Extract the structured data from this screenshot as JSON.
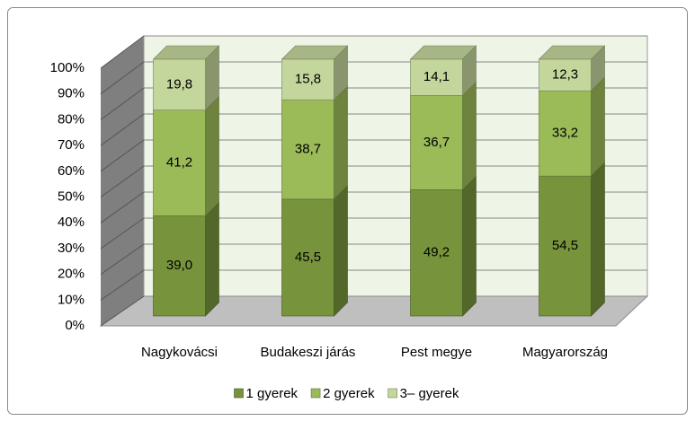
{
  "chart_data": {
    "type": "bar3d_stacked",
    "categories": [
      "Nagykovácsi",
      "Budakeszi járás",
      "Pest megye",
      "Magyarország"
    ],
    "series": [
      {
        "name": "1 gyerek",
        "color": "#77933c",
        "values": [
          39.0,
          45.5,
          49.2,
          54.5
        ],
        "value_labels": [
          "39,0",
          "45,5",
          "49,2",
          "54,5"
        ]
      },
      {
        "name": "2 gyerek",
        "color": "#9bbb59",
        "values": [
          41.2,
          38.7,
          36.7,
          33.2
        ],
        "value_labels": [
          "41,2",
          "38,7",
          "36,7",
          "33,2"
        ]
      },
      {
        "name": "3– gyerek",
        "color": "#c3d69b",
        "values": [
          19.8,
          15.8,
          14.1,
          12.3
        ],
        "value_labels": [
          "19,8",
          "15,8",
          "14,1",
          "12,3"
        ]
      }
    ],
    "ylim": [
      0,
      100
    ],
    "yticks": [
      {
        "value": 0,
        "label": "0%"
      },
      {
        "value": 10,
        "label": "10%"
      },
      {
        "value": 20,
        "label": "20%"
      },
      {
        "value": 30,
        "label": "30%"
      },
      {
        "value": 40,
        "label": "40%"
      },
      {
        "value": 50,
        "label": "50%"
      },
      {
        "value": 60,
        "label": "60%"
      },
      {
        "value": 70,
        "label": "70%"
      },
      {
        "value": 80,
        "label": "80%"
      },
      {
        "value": 90,
        "label": "90%"
      },
      {
        "value": 100,
        "label": "100%"
      }
    ],
    "grid": true,
    "legend": "bottom"
  }
}
